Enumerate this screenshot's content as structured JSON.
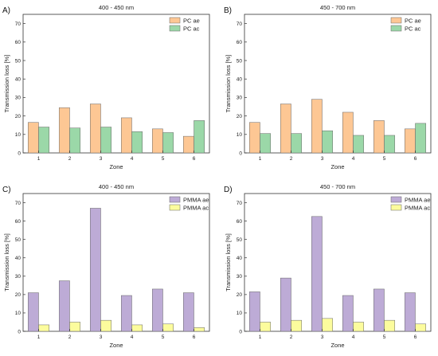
{
  "chart_data": [
    {
      "type": "bar",
      "panel_label": "A)",
      "title": "400 - 450 nm",
      "xlabel": "Zone",
      "ylabel": "Transmission loss [%]",
      "ylim": [
        0,
        75
      ],
      "yticks": [
        0,
        10,
        20,
        30,
        40,
        50,
        60,
        70
      ],
      "categories": [
        "1",
        "2",
        "3",
        "4",
        "5",
        "6"
      ],
      "legend_position": "top-right",
      "series": [
        {
          "name": "PC ae",
          "color": "#fdc794",
          "values": [
            16.5,
            24.5,
            26.5,
            19,
            13,
            9
          ]
        },
        {
          "name": "PC ac",
          "color": "#9bd8a8",
          "values": [
            14,
            13.5,
            14,
            11.5,
            11,
            17.5
          ]
        }
      ]
    },
    {
      "type": "bar",
      "panel_label": "B)",
      "title": "450 - 700 nm",
      "xlabel": "Zone",
      "ylabel": "Transmission loss [%]",
      "ylim": [
        0,
        75
      ],
      "yticks": [
        0,
        10,
        20,
        30,
        40,
        50,
        60,
        70
      ],
      "categories": [
        "1",
        "2",
        "3",
        "4",
        "5",
        "6"
      ],
      "legend_position": "top-right",
      "series": [
        {
          "name": "PC ae",
          "color": "#fdc794",
          "values": [
            16.5,
            26.5,
            29,
            22,
            17.5,
            13
          ]
        },
        {
          "name": "PC ac",
          "color": "#9bd8a8",
          "values": [
            10.5,
            10.5,
            12,
            9.5,
            9.5,
            16
          ]
        }
      ]
    },
    {
      "type": "bar",
      "panel_label": "C)",
      "title": "400 - 450 nm",
      "xlabel": "Zone",
      "ylabel": "Transmission loss [%]",
      "ylim": [
        0,
        75
      ],
      "yticks": [
        0,
        10,
        20,
        30,
        40,
        50,
        60,
        70
      ],
      "categories": [
        "1",
        "2",
        "3",
        "4",
        "5",
        "6"
      ],
      "legend_position": "top-right",
      "series": [
        {
          "name": "PMMA ae",
          "color": "#bdabd6",
          "values": [
            21,
            27.5,
            67,
            19.5,
            23,
            21
          ]
        },
        {
          "name": "PMMA ac",
          "color": "#fcfc9d",
          "values": [
            3.5,
            5,
            6,
            3.5,
            4,
            2
          ]
        }
      ]
    },
    {
      "type": "bar",
      "panel_label": "D)",
      "title": "450 - 700 nm",
      "xlabel": "Zone",
      "ylabel": "Transmission loss [%]",
      "ylim": [
        0,
        75
      ],
      "yticks": [
        0,
        10,
        20,
        30,
        40,
        50,
        60,
        70
      ],
      "categories": [
        "1",
        "2",
        "3",
        "4",
        "5",
        "6"
      ],
      "legend_position": "top-right",
      "series": [
        {
          "name": "PMMA ae",
          "color": "#bdabd6",
          "values": [
            21.5,
            29,
            62.5,
            19.5,
            23,
            21
          ]
        },
        {
          "name": "PMMA ac",
          "color": "#fcfc9d",
          "values": [
            5,
            6,
            7,
            5,
            6,
            4
          ]
        }
      ]
    }
  ]
}
